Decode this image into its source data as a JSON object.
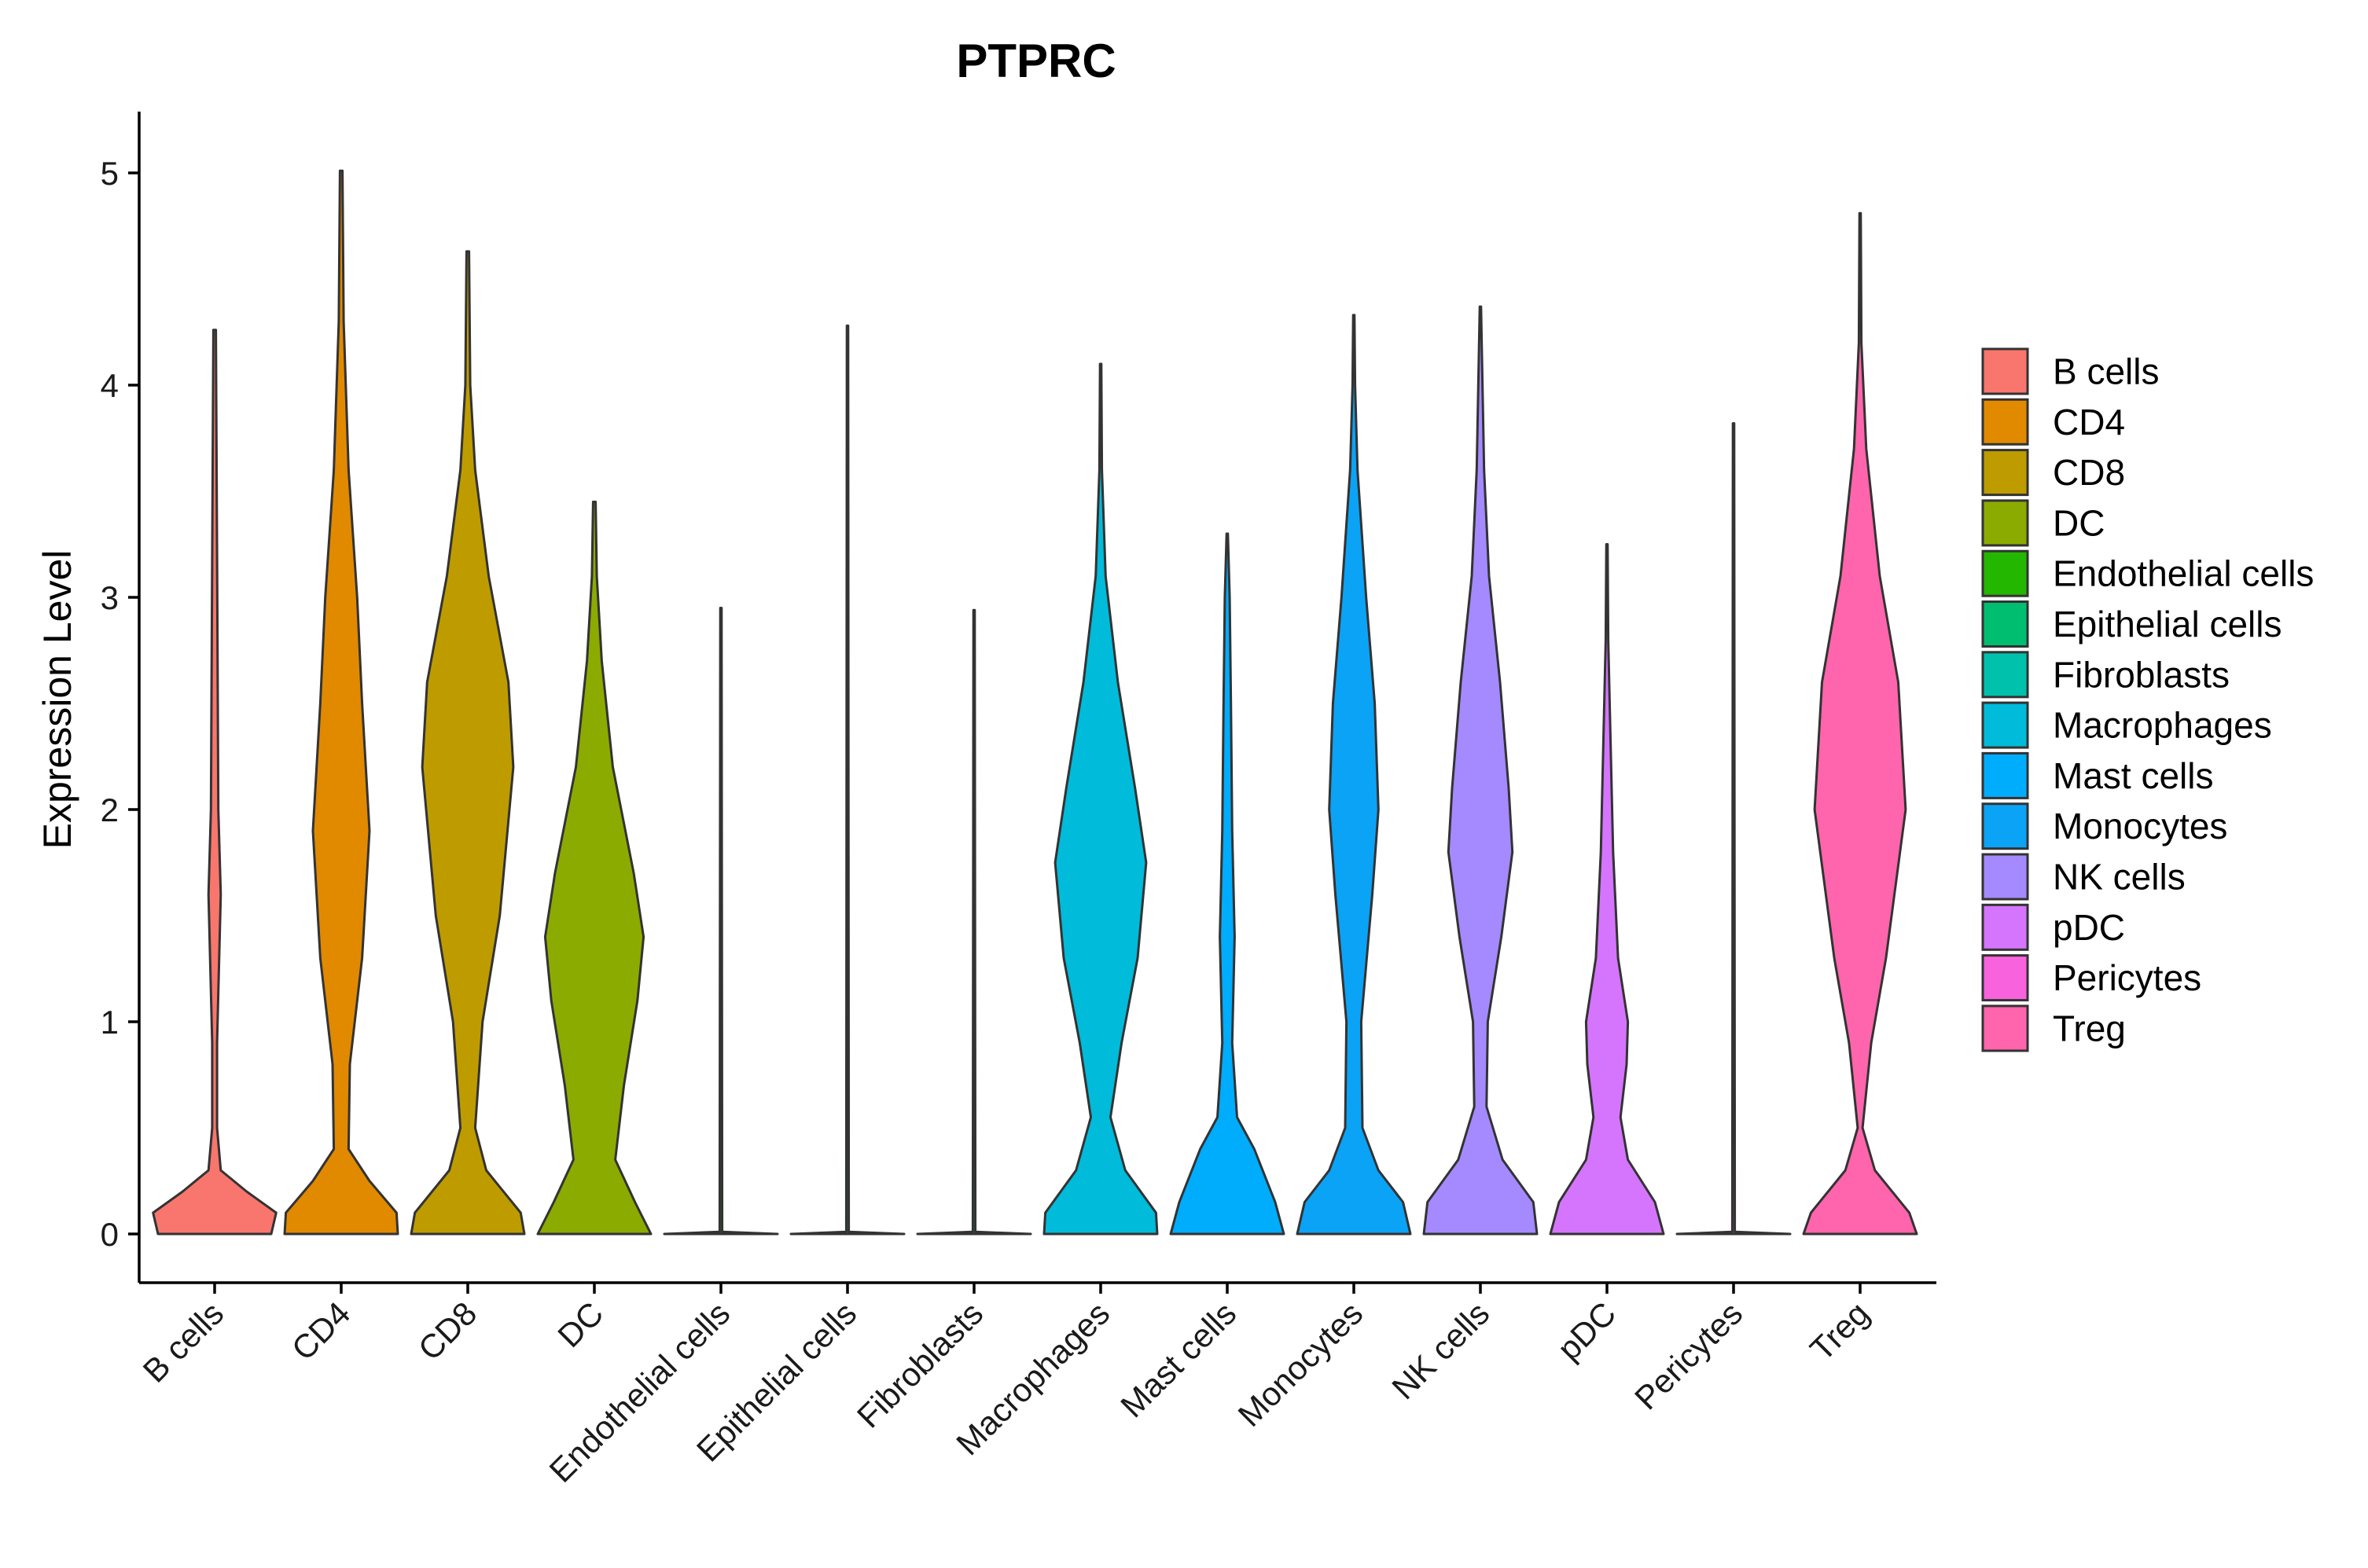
{
  "chart_data": {
    "type": "violin",
    "title": "PTPRC",
    "xlabel": "",
    "ylabel": "Expression Level",
    "ylim": [
      -0.25,
      5.27
    ],
    "yticks": [
      0,
      1,
      2,
      3,
      4,
      5
    ],
    "grid": false,
    "legend_position": "right",
    "categories": [
      {
        "name": "B cells",
        "color": "#F8766D",
        "max": 4.26,
        "density": [
          [
            0,
            0.46
          ],
          [
            0.1,
            0.5
          ],
          [
            0.2,
            0.26
          ],
          [
            0.3,
            0.05
          ],
          [
            0.5,
            0.02
          ],
          [
            0.9,
            0.02
          ],
          [
            1.6,
            0.05
          ],
          [
            2.0,
            0.03
          ],
          [
            3.2,
            0.02
          ],
          [
            4.26,
            0.01
          ]
        ]
      },
      {
        "name": "CD4",
        "color": "#E18A00",
        "max": 5.01,
        "density": [
          [
            0,
            0.46
          ],
          [
            0.1,
            0.45
          ],
          [
            0.25,
            0.23
          ],
          [
            0.4,
            0.06
          ],
          [
            0.8,
            0.07
          ],
          [
            1.3,
            0.17
          ],
          [
            1.9,
            0.23
          ],
          [
            2.5,
            0.17
          ],
          [
            3.0,
            0.13
          ],
          [
            3.6,
            0.06
          ],
          [
            4.3,
            0.02
          ],
          [
            5.01,
            0.01
          ]
        ]
      },
      {
        "name": "CD8",
        "color": "#BE9C00",
        "max": 4.63,
        "density": [
          [
            0,
            0.46
          ],
          [
            0.1,
            0.43
          ],
          [
            0.3,
            0.15
          ],
          [
            0.5,
            0.06
          ],
          [
            1.0,
            0.12
          ],
          [
            1.5,
            0.26
          ],
          [
            2.2,
            0.37
          ],
          [
            2.6,
            0.33
          ],
          [
            3.1,
            0.17
          ],
          [
            3.6,
            0.06
          ],
          [
            4.0,
            0.02
          ],
          [
            4.63,
            0.01
          ]
        ]
      },
      {
        "name": "DC",
        "color": "#8CAB00",
        "max": 3.45,
        "density": [
          [
            0,
            0.46
          ],
          [
            0.15,
            0.33
          ],
          [
            0.35,
            0.17
          ],
          [
            0.7,
            0.24
          ],
          [
            1.1,
            0.35
          ],
          [
            1.4,
            0.4
          ],
          [
            1.7,
            0.32
          ],
          [
            2.2,
            0.15
          ],
          [
            2.7,
            0.06
          ],
          [
            3.1,
            0.02
          ],
          [
            3.45,
            0.01
          ]
        ]
      },
      {
        "name": "Endothelial cells",
        "color": "#24B700",
        "max": 2.95,
        "density": [
          [
            0,
            0.46
          ],
          [
            0.01,
            0.01
          ],
          [
            2.95,
            0.005
          ]
        ]
      },
      {
        "name": "Epithelial cells",
        "color": "#00BE70",
        "max": 4.28,
        "density": [
          [
            0,
            0.46
          ],
          [
            0.01,
            0.01
          ],
          [
            4.28,
            0.005
          ]
        ]
      },
      {
        "name": "Fibroblasts",
        "color": "#00C1AB",
        "max": 2.94,
        "density": [
          [
            0,
            0.46
          ],
          [
            0.01,
            0.01
          ],
          [
            2.94,
            0.005
          ]
        ]
      },
      {
        "name": "Macrophages",
        "color": "#00BBDA",
        "max": 4.1,
        "density": [
          [
            0,
            0.46
          ],
          [
            0.1,
            0.45
          ],
          [
            0.3,
            0.2
          ],
          [
            0.55,
            0.08
          ],
          [
            0.9,
            0.17
          ],
          [
            1.3,
            0.3
          ],
          [
            1.75,
            0.37
          ],
          [
            2.1,
            0.28
          ],
          [
            2.6,
            0.14
          ],
          [
            3.1,
            0.04
          ],
          [
            3.6,
            0.01
          ],
          [
            4.1,
            0.005
          ]
        ]
      },
      {
        "name": "Mast cells",
        "color": "#00ACFC",
        "max": 3.3,
        "density": [
          [
            0,
            0.46
          ],
          [
            0.15,
            0.39
          ],
          [
            0.4,
            0.22
          ],
          [
            0.55,
            0.08
          ],
          [
            0.9,
            0.04
          ],
          [
            1.4,
            0.06
          ],
          [
            1.9,
            0.04
          ],
          [
            2.5,
            0.03
          ],
          [
            3.0,
            0.02
          ],
          [
            3.3,
            0.005
          ]
        ]
      },
      {
        "name": "Monocytes",
        "color": "#0BA3F6",
        "max": 4.33,
        "density": [
          [
            0,
            0.46
          ],
          [
            0.15,
            0.4
          ],
          [
            0.3,
            0.2
          ],
          [
            0.5,
            0.07
          ],
          [
            1.0,
            0.06
          ],
          [
            1.6,
            0.15
          ],
          [
            2.0,
            0.2
          ],
          [
            2.5,
            0.17
          ],
          [
            3.0,
            0.1
          ],
          [
            3.6,
            0.03
          ],
          [
            4.0,
            0.01
          ],
          [
            4.33,
            0.005
          ]
        ]
      },
      {
        "name": "NK cells",
        "color": "#A58AFF",
        "max": 4.37,
        "density": [
          [
            0,
            0.46
          ],
          [
            0.15,
            0.43
          ],
          [
            0.35,
            0.18
          ],
          [
            0.6,
            0.05
          ],
          [
            1.0,
            0.06
          ],
          [
            1.4,
            0.17
          ],
          [
            1.8,
            0.26
          ],
          [
            2.1,
            0.23
          ],
          [
            2.6,
            0.16
          ],
          [
            3.1,
            0.07
          ],
          [
            3.6,
            0.03
          ],
          [
            4.37,
            0.005
          ]
        ]
      },
      {
        "name": "pDC",
        "color": "#D575FE",
        "max": 3.25,
        "density": [
          [
            0,
            0.46
          ],
          [
            0.15,
            0.39
          ],
          [
            0.35,
            0.17
          ],
          [
            0.55,
            0.11
          ],
          [
            0.8,
            0.16
          ],
          [
            1.0,
            0.17
          ],
          [
            1.3,
            0.09
          ],
          [
            1.8,
            0.05
          ],
          [
            2.3,
            0.03
          ],
          [
            2.8,
            0.01
          ],
          [
            3.25,
            0.005
          ]
        ]
      },
      {
        "name": "Pericytes",
        "color": "#F962DD",
        "max": 3.82,
        "density": [
          [
            0,
            0.46
          ],
          [
            0.01,
            0.01
          ],
          [
            3.82,
            0.005
          ]
        ]
      },
      {
        "name": "Treg",
        "color": "#FF65AC",
        "max": 4.81,
        "density": [
          [
            0,
            0.46
          ],
          [
            0.1,
            0.4
          ],
          [
            0.3,
            0.12
          ],
          [
            0.5,
            0.02
          ],
          [
            0.9,
            0.09
          ],
          [
            1.3,
            0.21
          ],
          [
            2.0,
            0.37
          ],
          [
            2.6,
            0.31
          ],
          [
            3.1,
            0.16
          ],
          [
            3.7,
            0.05
          ],
          [
            4.2,
            0.01
          ],
          [
            4.81,
            0.005
          ]
        ]
      }
    ]
  }
}
